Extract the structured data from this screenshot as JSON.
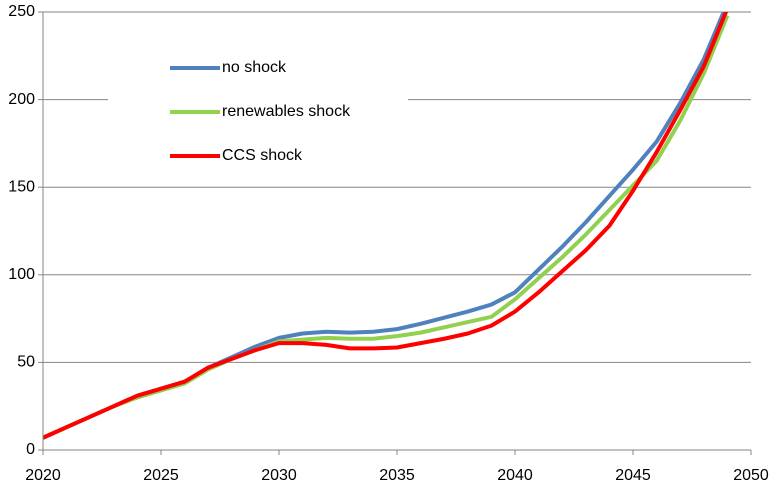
{
  "chart_data": {
    "type": "line",
    "x": [
      2020,
      2021,
      2022,
      2023,
      2024,
      2025,
      2026,
      2027,
      2028,
      2029,
      2030,
      2031,
      2032,
      2033,
      2034,
      2035,
      2036,
      2037,
      2038,
      2039,
      2040,
      2041,
      2042,
      2043,
      2044,
      2045,
      2046,
      2047,
      2048,
      2049
    ],
    "series": [
      {
        "name": "no shock",
        "color": "#4f81bd",
        "values": [
          7,
          13,
          19,
          25,
          31,
          35,
          39,
          47,
          53,
          59,
          64,
          66.5,
          67.5,
          67,
          67.5,
          69,
          72,
          75.5,
          79,
          83,
          90,
          103,
          116,
          130,
          145,
          160,
          176,
          198,
          223,
          255
        ]
      },
      {
        "name": "renewables shock",
        "color": "#92d050",
        "values": [
          7,
          13,
          19,
          25,
          30,
          34,
          38,
          46,
          52,
          57,
          62,
          63,
          64,
          63.5,
          63.5,
          65,
          67,
          70,
          73,
          76,
          86,
          98,
          110,
          123,
          137,
          151,
          165,
          188,
          215,
          248
        ]
      },
      {
        "name": "CCS shock",
        "color": "#ff0000",
        "values": [
          7,
          13,
          19,
          25,
          31,
          35,
          39,
          47,
          52,
          57,
          61,
          61,
          60,
          58,
          58,
          58.5,
          61,
          63.5,
          66.5,
          71,
          79,
          90,
          102,
          114,
          128,
          148,
          170,
          194,
          219,
          252
        ]
      }
    ],
    "xlim": [
      2020,
      2050
    ],
    "xticks": [
      2020,
      2025,
      2030,
      2035,
      2040,
      2045,
      2050
    ],
    "ylim": [
      0,
      250
    ],
    "yticks": [
      0,
      50,
      100,
      150,
      200,
      250
    ],
    "grid": true,
    "legend": "top-left"
  }
}
